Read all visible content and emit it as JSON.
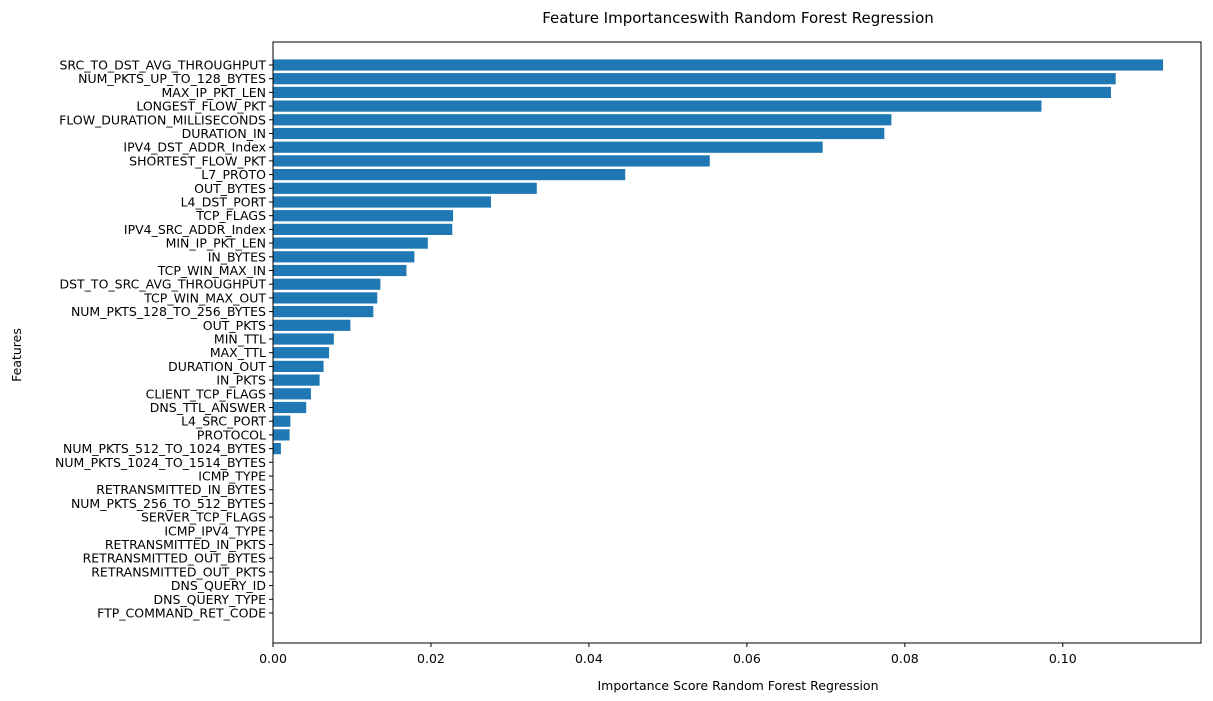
{
  "chart_data": {
    "type": "bar",
    "orientation": "horizontal",
    "title": "Feature Importanceswith Random Forest Regression",
    "xlabel": "Importance Score Random Forest Regression",
    "ylabel": "Features",
    "xlim": [
      0,
      0.1175
    ],
    "xticks": [
      0.0,
      0.02,
      0.04,
      0.06,
      0.08,
      0.1
    ],
    "xtick_labels": [
      "0.00",
      "0.02",
      "0.04",
      "0.06",
      "0.08",
      "0.10"
    ],
    "grid": false,
    "bar_color": "#1f77b4",
    "categories": [
      "SRC_TO_DST_AVG_THROUGHPUT",
      "NUM_PKTS_UP_TO_128_BYTES",
      "MAX_IP_PKT_LEN",
      "LONGEST_FLOW_PKT",
      "FLOW_DURATION_MILLISECONDS",
      "DURATION_IN",
      "IPV4_DST_ADDR_Index",
      "SHORTEST_FLOW_PKT",
      "L7_PROTO",
      "OUT_BYTES",
      "L4_DST_PORT",
      "TCP_FLAGS",
      "IPV4_SRC_ADDR_Index",
      "MIN_IP_PKT_LEN",
      "IN_BYTES",
      "TCP_WIN_MAX_IN",
      "DST_TO_SRC_AVG_THROUGHPUT",
      "TCP_WIN_MAX_OUT",
      "NUM_PKTS_128_TO_256_BYTES",
      "OUT_PKTS",
      "MIN_TTL",
      "MAX_TTL",
      "DURATION_OUT",
      "IN_PKTS",
      "CLIENT_TCP_FLAGS",
      "DNS_TTL_ANSWER",
      "L4_SRC_PORT",
      "PROTOCOL",
      "NUM_PKTS_512_TO_1024_BYTES",
      "NUM_PKTS_1024_TO_1514_BYTES",
      "ICMP_TYPE",
      "RETRANSMITTED_IN_BYTES",
      "NUM_PKTS_256_TO_512_BYTES",
      "SERVER_TCP_FLAGS",
      "ICMP_IPV4_TYPE",
      "RETRANSMITTED_IN_PKTS",
      "RETRANSMITTED_OUT_BYTES",
      "RETRANSMITTED_OUT_PKTS",
      "DNS_QUERY_ID",
      "DNS_QUERY_TYPE",
      "FTP_COMMAND_RET_CODE"
    ],
    "values": [
      0.1127,
      0.1067,
      0.1061,
      0.0973,
      0.0783,
      0.0774,
      0.0696,
      0.0553,
      0.0446,
      0.0334,
      0.0276,
      0.0228,
      0.0227,
      0.0196,
      0.0179,
      0.0169,
      0.0136,
      0.0132,
      0.0127,
      0.0098,
      0.0077,
      0.0071,
      0.0064,
      0.0059,
      0.0048,
      0.0042,
      0.0022,
      0.0021,
      0.001,
      0.0,
      0.0,
      0.0,
      0.0,
      0.0,
      0.0,
      0.0,
      0.0,
      0.0,
      0.0,
      0.0,
      0.0
    ]
  }
}
